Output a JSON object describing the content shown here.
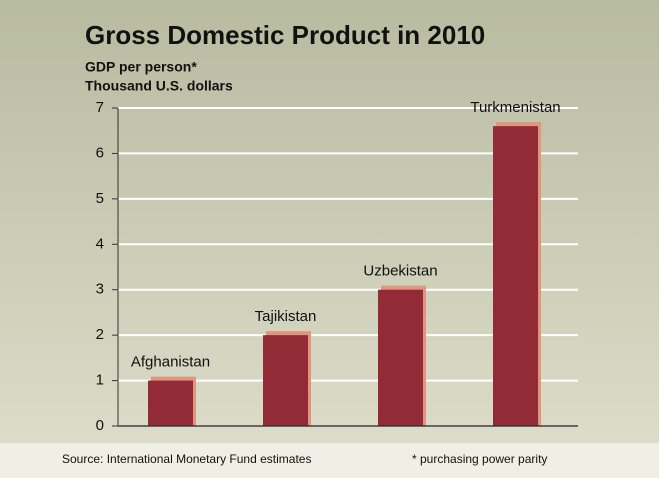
{
  "chart_data": {
    "type": "bar",
    "title": "Gross Domestic Product in 2010",
    "subtitle": [
      "GDP per person*",
      "Thousand U.S. dollars"
    ],
    "categories": [
      "Afghanistan",
      "Tajikistan",
      "Uzbekistan",
      "Turkmenistan"
    ],
    "values": [
      1.0,
      2.0,
      3.0,
      6.6
    ],
    "color": "#922b35",
    "highlight_color": "#e0957e",
    "ylim": [
      0,
      7
    ],
    "yticks": [
      0,
      1,
      2,
      3,
      4,
      5,
      6,
      7
    ],
    "grid": true,
    "source": "Source: International Monetary Fund estimates",
    "note": "* purchasing power parity"
  }
}
